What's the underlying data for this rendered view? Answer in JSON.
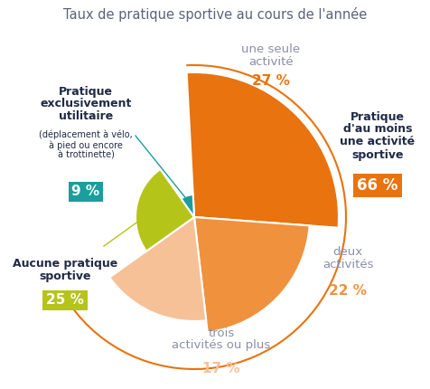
{
  "chart_data": {
    "type": "pie",
    "title": "Taux de pratique sportive au cours de l'année",
    "categories": [
      "une seule\nactivité",
      "deux\nactivités",
      "trois\nactivités ou plus",
      "Aucune pratique\nsportive",
      "Pratique\nexclusivement\nutilitaire"
    ],
    "details": [
      null,
      null,
      null,
      null,
      "(déplacement à vélo,\nà pied ou encore\nà trottinette)"
    ],
    "values": [
      27,
      22,
      17,
      25,
      9
    ],
    "value_labels": [
      "27 %",
      "22 %",
      "17 %",
      "25 %",
      "9 %"
    ],
    "colors": [
      "#e8730f",
      "#f0913e",
      "#f6c197",
      "#b5c418",
      "#1a9e9e"
    ],
    "data_labels": true,
    "group": {
      "label": "Pratique\nd'au moins\nune activité\nsportive",
      "value": 66,
      "value_label": "66 %",
      "color": "#e8730f"
    }
  }
}
